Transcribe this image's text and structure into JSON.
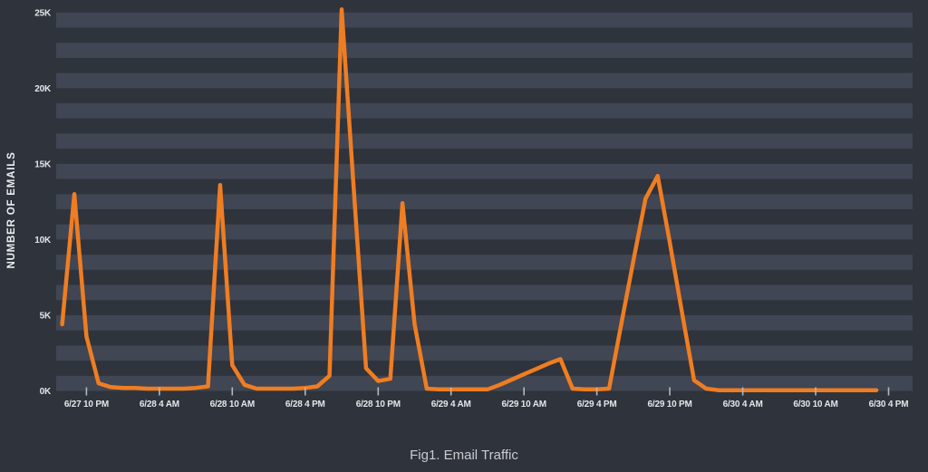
{
  "figure": {
    "caption": "Fig1. Email Traffic"
  },
  "colors": {
    "background": "#2e333c",
    "stripe_light": "#404653",
    "stripe_dark": "#2e333c",
    "line": "#ef7d22",
    "label_text": "#e4e6e8",
    "axis_title_text": "#edeff1",
    "tick_mark": "#b4b8bd",
    "caption_text": "#c9cbce"
  },
  "chart_data": {
    "type": "line",
    "title": "Fig1. Email Traffic",
    "xlabel": "",
    "ylabel": "NUMBER OF EMAILS",
    "unit": "emails",
    "ylim": [
      0,
      25800
    ],
    "grid": "horizontal stripes, one band per 1K, legend off",
    "legend": "none",
    "y_ticks": [
      {
        "value": 0,
        "label": "0K"
      },
      {
        "value": 5000,
        "label": "5K"
      },
      {
        "value": 10000,
        "label": "10K"
      },
      {
        "value": 15000,
        "label": "15K"
      },
      {
        "value": 20000,
        "label": "20K"
      },
      {
        "value": 25000,
        "label": "25K"
      }
    ],
    "x_tick_labels": [
      "6/27 10 PM",
      "6/28 4 AM",
      "6/28 10 AM",
      "6/28 4 PM",
      "6/28 10 PM",
      "6/29 4 AM",
      "6/29 10 AM",
      "6/29 4 PM",
      "6/29 10 PM",
      "6/30 4 AM",
      "6/30 10 AM",
      "6/30 4 PM"
    ],
    "x_tick_interval_hours": 6,
    "x": [
      "6/27 8 PM",
      "6/27 9 PM",
      "6/27 10 PM",
      "6/27 11 PM",
      "6/28 12 AM",
      "6/28 1 AM",
      "6/28 2 AM",
      "6/28 3 AM",
      "6/28 4 AM",
      "6/28 5 AM",
      "6/28 6 AM",
      "6/28 7 AM",
      "6/28 8 AM",
      "6/28 9 AM",
      "6/28 10 AM",
      "6/28 11 AM",
      "6/28 12 PM",
      "6/28 1 PM",
      "6/28 2 PM",
      "6/28 3 PM",
      "6/28 4 PM",
      "6/28 5 PM",
      "6/28 6 PM",
      "6/28 7 PM",
      "6/28 8 PM",
      "6/28 9 PM",
      "6/28 10 PM",
      "6/28 11 PM",
      "6/29 12 AM",
      "6/29 1 AM",
      "6/29 2 AM",
      "6/29 3 AM",
      "6/29 4 AM",
      "6/29 5 AM",
      "6/29 6 AM",
      "6/29 7 AM",
      "6/29 8 AM",
      "6/29 9 AM",
      "6/29 10 AM",
      "6/29 11 AM",
      "6/29 12 PM",
      "6/29 1 PM",
      "6/29 2 PM",
      "6/29 3 PM",
      "6/29 4 PM",
      "6/29 5 PM",
      "6/29 6 PM",
      "6/29 7 PM",
      "6/29 8 PM",
      "6/29 9 PM",
      "6/29 10 PM",
      "6/29 11 PM",
      "6/30 12 AM",
      "6/30 1 AM",
      "6/30 2 AM",
      "6/30 3 AM",
      "6/30 4 AM",
      "6/30 5 AM",
      "6/30 6 AM",
      "6/30 7 AM",
      "6/30 8 AM",
      "6/30 9 AM",
      "6/30 10 AM",
      "6/30 11 AM",
      "6/30 12 PM",
      "6/30 1 PM",
      "6/30 2 PM",
      "6/30 3 PM"
    ],
    "series": [
      {
        "name": "Number of Emails",
        "color": "#ef7d22",
        "values": [
          4400,
          13000,
          3600,
          500,
          250,
          200,
          200,
          150,
          150,
          150,
          150,
          200,
          300,
          13600,
          1700,
          400,
          150,
          150,
          150,
          150,
          200,
          300,
          1000,
          25200,
          13300,
          1500,
          650,
          800,
          12400,
          4400,
          150,
          100,
          100,
          100,
          100,
          100,
          400,
          750,
          1100,
          1450,
          1800,
          2100,
          150,
          100,
          100,
          150,
          4400,
          8600,
          12700,
          14200,
          9800,
          5200,
          700,
          150,
          50,
          50,
          50,
          50,
          50,
          50,
          50,
          50,
          50,
          50,
          50,
          50,
          50,
          50
        ]
      }
    ]
  }
}
